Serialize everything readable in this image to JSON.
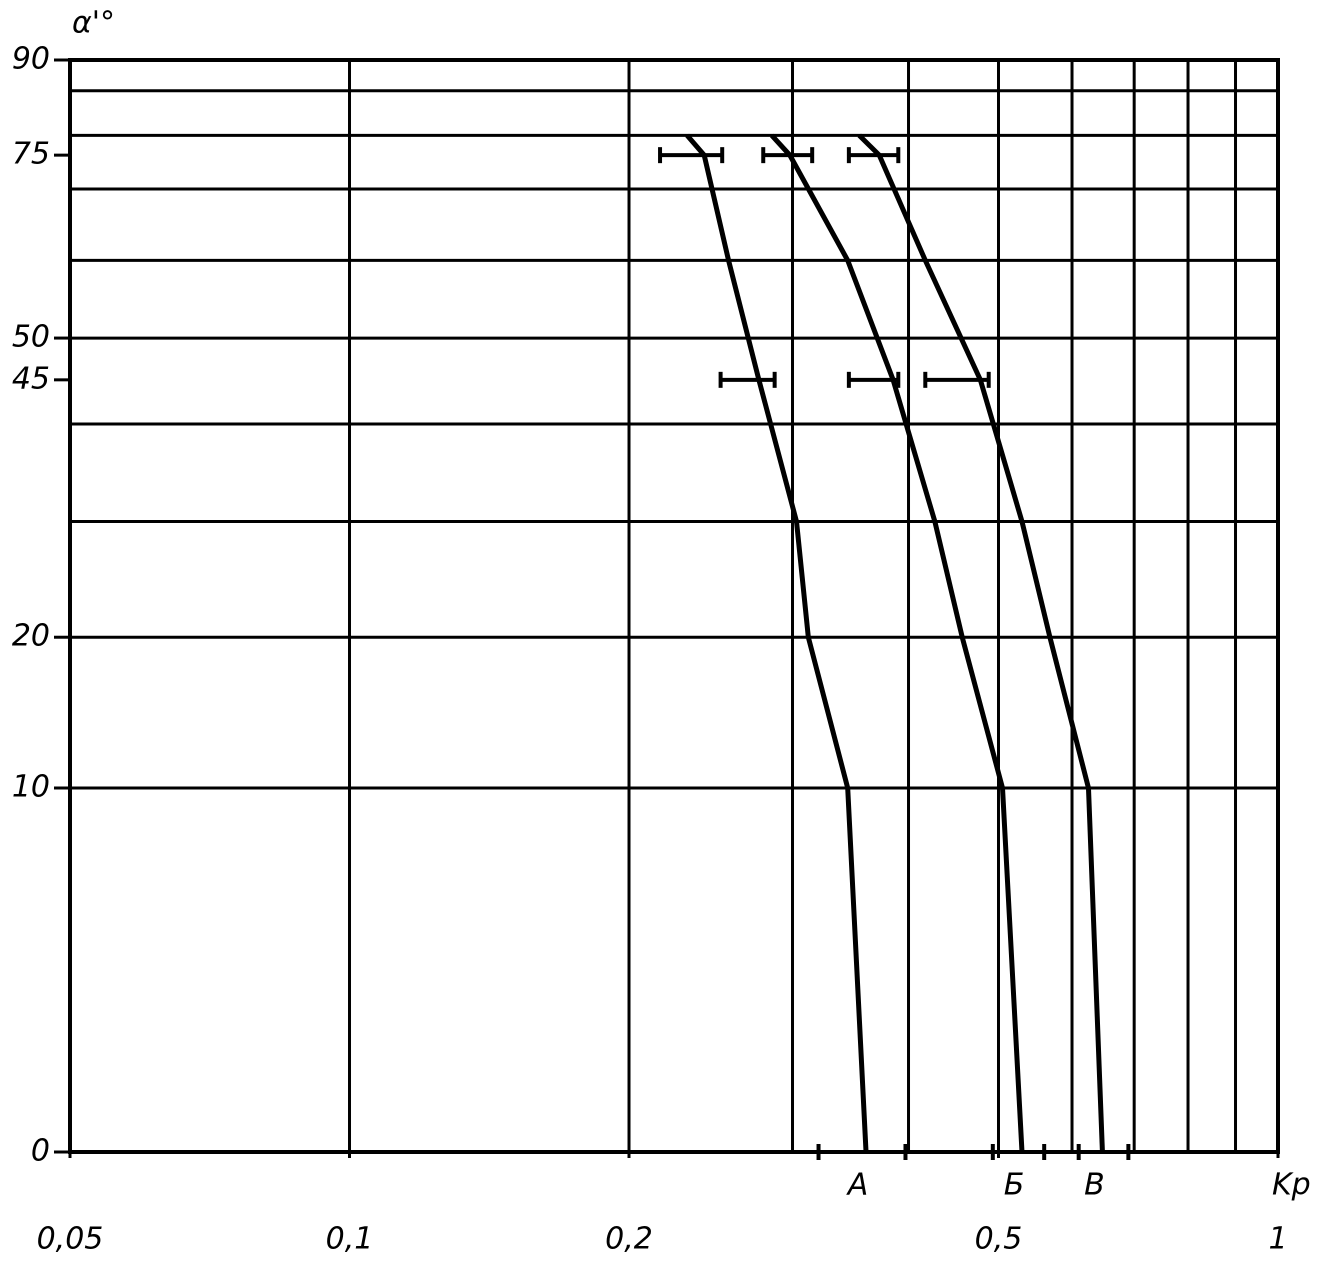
{
  "chart_data": {
    "type": "line",
    "x_label": "Kp",
    "y_label": "α'°",
    "xlim": [
      0.05,
      1
    ],
    "xlog": true,
    "xticks": [
      {
        "value": 0.05,
        "label": "0,05"
      },
      {
        "value": 0.1,
        "label": "0,1"
      },
      {
        "value": 0.2,
        "label": "0,2"
      },
      {
        "value": 0.5,
        "label": "0,5"
      },
      1
    ],
    "xgrid": [
      0.1,
      0.2,
      0.3,
      0.4,
      0.5,
      0.6,
      0.7,
      0.8,
      0.9
    ],
    "ylim": [
      0,
      90
    ],
    "yscale": "sqrt",
    "yticks": [
      0,
      10,
      20,
      45,
      50,
      75,
      90
    ],
    "ygrid": [
      10,
      20,
      30,
      40,
      50,
      60,
      70,
      78,
      85
    ],
    "color": "#000000",
    "y": [
      0,
      10,
      20,
      30,
      45,
      60,
      75,
      78
    ],
    "series": [
      {
        "name": "А",
        "values": [
          0.36,
          0.344,
          0.312,
          0.303,
          0.276,
          0.256,
          0.241,
          0.231
        ],
        "intervals": {
          "y": [
            0,
            45,
            75
          ],
          "low": [
            0.32,
            0.251,
            0.216
          ],
          "high": [
            0.397,
            0.287,
            0.252
          ]
        }
      },
      {
        "name": "Б",
        "values": [
          0.53,
          0.505,
          0.457,
          0.427,
          0.385,
          0.344,
          0.298,
          0.285
        ],
        "intervals": {
          "y": [
            0,
            45,
            75
          ],
          "low": [
            0.493,
            0.345,
            0.279
          ],
          "high": [
            0.56,
            0.39,
            0.315
          ]
        }
      },
      {
        "name": "В",
        "values": [
          0.647,
          0.625,
          0.568,
          0.53,
          0.478,
          0.417,
          0.372,
          0.354
        ],
        "intervals": {
          "y": [
            0,
            45,
            75
          ],
          "low": [
            0.61,
            0.417,
            0.345
          ],
          "high": [
            0.69,
            0.488,
            0.39
          ]
        }
      }
    ]
  }
}
